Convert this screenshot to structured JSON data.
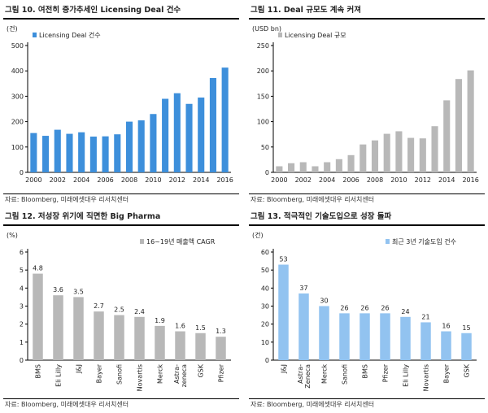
{
  "source_note": "자료: Bloomberg, 미래에셋대우 리서치센터",
  "colors": {
    "blue": "#3d8fdb",
    "gray": "#b8b8b8",
    "lightblue": "#92c3f0"
  },
  "chart_data": [
    {
      "type": "bar",
      "title": "그림 10. 여전히 증가추세인 Licensing Deal 건수",
      "unit_label": "(건)",
      "legend": "Licensing Deal 건수",
      "legend_position": "top-left",
      "categories": [
        "2000",
        "2001",
        "2002",
        "2003",
        "2004",
        "2005",
        "2006",
        "2007",
        "2008",
        "2009",
        "2010",
        "2011",
        "2012",
        "2013",
        "2014",
        "2015",
        "2016"
      ],
      "values": [
        155,
        144,
        168,
        152,
        158,
        141,
        142,
        150,
        200,
        205,
        230,
        290,
        312,
        270,
        295,
        372,
        413
      ],
      "x_tick_labels": [
        "2000",
        "2002",
        "2004",
        "2006",
        "2008",
        "2010",
        "2012",
        "2014",
        "2016"
      ],
      "ylim": [
        0,
        500
      ],
      "yticks": [
        0,
        100,
        200,
        300,
        400,
        500
      ],
      "color": "#3d8fdb"
    },
    {
      "type": "bar",
      "title": "그림 11. Deal 규모도 계속 커져",
      "unit_label": "(USD bn)",
      "legend": "Licensing Deal 규모",
      "legend_position": "top-left",
      "categories": [
        "2000",
        "2001",
        "2002",
        "2003",
        "2004",
        "2005",
        "2006",
        "2007",
        "2008",
        "2009",
        "2010",
        "2011",
        "2012",
        "2013",
        "2014",
        "2015",
        "2016"
      ],
      "values": [
        12,
        18,
        20,
        12,
        20,
        26,
        34,
        55,
        63,
        76,
        81,
        68,
        67,
        91,
        142,
        184,
        201
      ],
      "x_tick_labels": [
        "2000",
        "2002",
        "2004",
        "2006",
        "2008",
        "2010",
        "2012",
        "2014",
        "2016"
      ],
      "ylim": [
        0,
        250
      ],
      "yticks": [
        0,
        50,
        100,
        150,
        200,
        250
      ],
      "color": "#b8b8b8"
    },
    {
      "type": "bar",
      "title": "그림 12. 저성장 위기에 직면한 Big Pharma",
      "unit_label": "(%)",
      "legend": "16~19년 매출액 CAGR",
      "legend_position": "top-right",
      "categories": [
        "BMS",
        "Eli Lilly",
        "J&J",
        "Bayer",
        "Sanofi",
        "Novartis",
        "Merck",
        "Astra-zeneca",
        "GSK",
        "Pfizer"
      ],
      "category_lines": [
        [
          "BMS"
        ],
        [
          "Eli Lilly"
        ],
        [
          "J&J"
        ],
        [
          "Bayer"
        ],
        [
          "Sanofi"
        ],
        [
          "Novartis"
        ],
        [
          "Merck"
        ],
        [
          "Astra-",
          "zeneca"
        ],
        [
          "GSK"
        ],
        [
          "Pfizer"
        ]
      ],
      "values": [
        4.8,
        3.6,
        3.5,
        2.7,
        2.5,
        2.4,
        1.9,
        1.6,
        1.5,
        1.3
      ],
      "data_labels": [
        "4.8",
        "3.6",
        "3.5",
        "2.7",
        "2.5",
        "2.4",
        "1.9",
        "1.6",
        "1.5",
        "1.3"
      ],
      "ylim": [
        0,
        6
      ],
      "yticks": [
        0,
        1,
        2,
        3,
        4,
        5,
        6
      ],
      "color": "#b8b8b8"
    },
    {
      "type": "bar",
      "title": "그림 13. 적극적인 기술도입으로 성장 돌파",
      "unit_label": "(건)",
      "legend": "최근 3년 기술도입 건수",
      "legend_position": "top-right",
      "categories": [
        "J&J",
        "Astra-Zeneca",
        "Merck",
        "Sanofi",
        "BMS",
        "Pfizer",
        "Eli Lilly",
        "Novartis",
        "Bayer",
        "GSK"
      ],
      "category_lines": [
        [
          "J&J"
        ],
        [
          "Astra-",
          "Zeneca"
        ],
        [
          "Merck"
        ],
        [
          "Sanofi"
        ],
        [
          "BMS"
        ],
        [
          "Pfizer"
        ],
        [
          "Eli Lilly"
        ],
        [
          "Novartis"
        ],
        [
          "Bayer"
        ],
        [
          "GSK"
        ]
      ],
      "values": [
        53,
        37,
        30,
        26,
        26,
        26,
        24,
        21,
        16,
        15
      ],
      "data_labels": [
        "53",
        "37",
        "30",
        "26",
        "26",
        "26",
        "24",
        "21",
        "16",
        "15"
      ],
      "ylim": [
        0,
        60
      ],
      "yticks": [
        0,
        10,
        20,
        30,
        40,
        50,
        60
      ],
      "color": "#92c3f0"
    }
  ]
}
